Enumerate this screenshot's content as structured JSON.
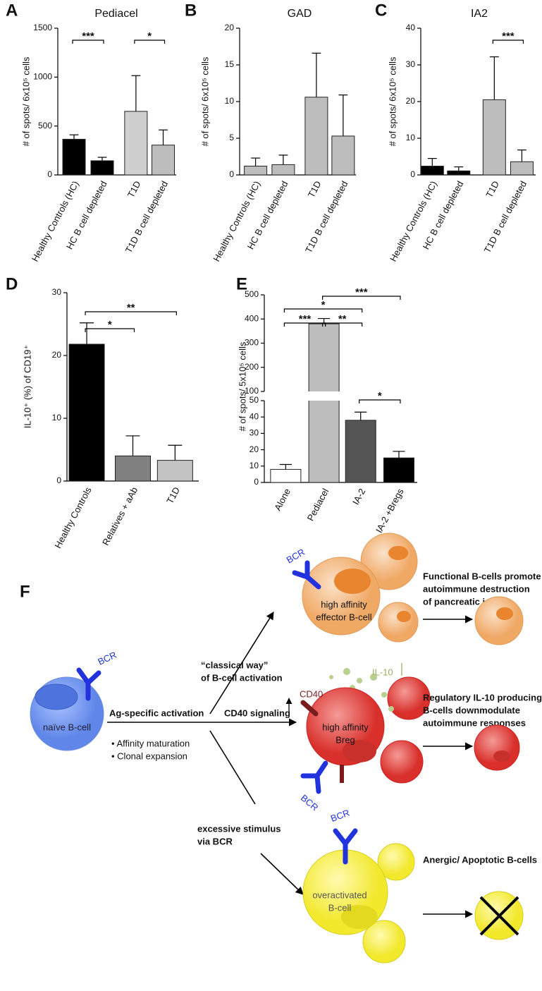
{
  "chart_data": [
    {
      "type": "bar",
      "label": "A",
      "title": "Pediacel",
      "ylabel": "# of spots/ 6x10⁵ cells",
      "categories": [
        "Healthy Controls (HC)",
        "HC B cell depleted",
        "T1D",
        "T1D B cell depleted"
      ],
      "values": [
        365,
        145,
        650,
        305
      ],
      "errors": [
        45,
        35,
        365,
        155
      ],
      "colors": [
        "#000000",
        "#000000",
        "#cfcfcf",
        "#bdbdbd"
      ],
      "ylim": [
        0,
        1500
      ],
      "yticks": [
        0,
        500,
        1000,
        1500
      ],
      "significance": [
        {
          "from": 0,
          "to": 1,
          "label": "***"
        },
        {
          "from": 2,
          "to": 3,
          "label": "*"
        }
      ]
    },
    {
      "type": "bar",
      "label": "B",
      "title": "GAD",
      "ylabel": "# of spots/ 6x10⁵ cells",
      "categories": [
        "Healthy Controls (HC)",
        "HC B cell depleted",
        "T1D",
        "T1D B cell depleted"
      ],
      "values": [
        1.2,
        1.4,
        10.6,
        5.3
      ],
      "errors": [
        1.1,
        1.3,
        6.0,
        5.6
      ],
      "colors": [
        "#bdbdbd",
        "#bdbdbd",
        "#bdbdbd",
        "#bdbdbd"
      ],
      "ylim": [
        0,
        20
      ],
      "yticks": [
        0,
        5,
        10,
        15,
        20
      ],
      "significance": []
    },
    {
      "type": "bar",
      "label": "C",
      "title": "IA2",
      "ylabel": "# of spots/ 6x10⁵ cells",
      "categories": [
        "Healthy Controls (HC)",
        "HC B cell depleted",
        "T1D",
        "T1D B cell depleted"
      ],
      "values": [
        2.4,
        1.1,
        20.5,
        3.6
      ],
      "errors": [
        2.1,
        1.1,
        11.7,
        3.2
      ],
      "colors": [
        "#000000",
        "#000000",
        "#bdbdbd",
        "#bdbdbd"
      ],
      "ylim": [
        0,
        40
      ],
      "yticks": [
        0,
        10,
        20,
        30,
        40
      ],
      "significance": [
        {
          "from": 2,
          "to": 3,
          "label": "***"
        }
      ]
    },
    {
      "type": "bar",
      "label": "D",
      "ylabel": "IL-10⁺ (%) of CD19⁺",
      "categories": [
        "Healthy Controls",
        "Relatives + aAb",
        "T1D"
      ],
      "values": [
        21.8,
        4.0,
        3.3
      ],
      "errors": [
        3.4,
        3.2,
        2.4
      ],
      "colors": [
        "#000000",
        "#808080",
        "#c4c4c4"
      ],
      "ylim": [
        0,
        30
      ],
      "yticks": [
        0,
        10,
        20,
        30
      ],
      "significance": [
        {
          "from": 0,
          "to": 1,
          "label": "*"
        },
        {
          "from": 0,
          "to": 2,
          "label": "**"
        }
      ]
    },
    {
      "type": "bar",
      "label": "E",
      "ylabel": "# of spots/ 5x10⁵ cells",
      "categories": [
        "Alone",
        "Pediacel",
        "IA-2",
        "IA-2 +Bregs"
      ],
      "values": [
        8,
        380,
        38,
        15
      ],
      "errors": [
        3,
        22,
        5,
        4
      ],
      "colors": [
        "#ffffff",
        "#bdbdbd",
        "#555555",
        "#000000"
      ],
      "ylim": [
        0,
        500
      ],
      "ybreak": [
        50,
        100
      ],
      "yticks": [
        0,
        10,
        20,
        30,
        40,
        50,
        100,
        200,
        300,
        400,
        500
      ],
      "significance": [
        {
          "from": 0,
          "to": 1,
          "label": "***"
        },
        {
          "from": 1,
          "to": 2,
          "label": "**"
        },
        {
          "from": 0,
          "to": 2,
          "label": "*"
        },
        {
          "from": 1,
          "to": 3,
          "label": "***"
        },
        {
          "from": 2,
          "to": 3,
          "label": "*"
        }
      ]
    }
  ],
  "diagram": {
    "label": "F",
    "naive": {
      "lines": [
        "naïve B-cell"
      ],
      "receptor": "BCR"
    },
    "activation": {
      "title": "Ag-specific activation",
      "items": [
        "• Affinity maturation",
        "• Clonal expansion"
      ]
    },
    "paths": [
      {
        "lines": [
          "“classical way”",
          "of B-cell activation"
        ]
      },
      {
        "lines": [
          "CD40 signaling"
        ]
      },
      {
        "lines": [
          "excessive stimulus",
          "via BCR"
        ]
      }
    ],
    "cells": [
      {
        "lines": [
          "high affinity",
          "effector B-cell"
        ],
        "receptor": "BCR"
      },
      {
        "lines": [
          "high affinity",
          "Breg"
        ],
        "receptor": "BCR",
        "marker": "CD40",
        "cytokine": "IL-10"
      },
      {
        "lines": [
          "overactivated",
          "B-cell"
        ],
        "receptor": "BCR"
      }
    ],
    "outcomes": [
      {
        "lines": [
          "Functional B-cells promote",
          "autoimmune destruction",
          "of pancreatic islets"
        ]
      },
      {
        "lines": [
          "Regulatory IL-10 producing",
          "B-cells downmodulate",
          "autoimmune responses"
        ]
      },
      {
        "lines": [
          "Anergic/ Apoptotic B-cells"
        ]
      }
    ]
  }
}
